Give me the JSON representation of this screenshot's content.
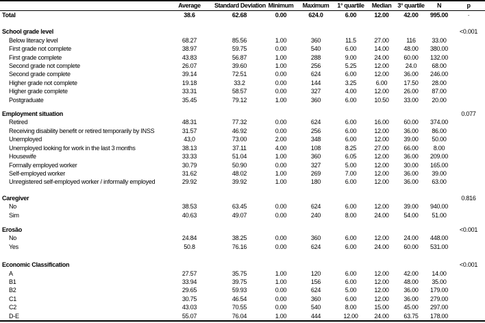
{
  "header": {
    "columns": [
      "",
      "Average",
      "Standard Deviation",
      "Minimum",
      "Maximum",
      "1° quartile",
      "Median",
      "3° quartile",
      "N",
      "p"
    ]
  },
  "rows": [
    {
      "type": "data",
      "label": "Total",
      "bold": true,
      "values": [
        "38.6",
        "62.68",
        "0.00",
        "624.0",
        "6.00",
        "12.00",
        "42.00",
        "995.00"
      ],
      "p": "-"
    },
    {
      "type": "spacer",
      "height": 12
    },
    {
      "type": "section",
      "label": "School grade level",
      "p": "<0.001"
    },
    {
      "type": "data",
      "indent": true,
      "label": "Below literacy level",
      "values": [
        "68.27",
        "85.56",
        "1.00",
        "360",
        "11.5",
        "27.00",
        "116",
        "33.00"
      ],
      "p": ""
    },
    {
      "type": "data",
      "indent": true,
      "label": "First grade not complete",
      "values": [
        "38.97",
        "59.75",
        "0.00",
        "540",
        "6.00",
        "14.00",
        "48.00",
        "380.00"
      ],
      "p": ""
    },
    {
      "type": "data",
      "indent": true,
      "label": "First grade complete",
      "values": [
        "43.83",
        "56.87",
        "1.00",
        "288",
        "9.00",
        "24.00",
        "60.00",
        "132.00"
      ],
      "p": ""
    },
    {
      "type": "data",
      "indent": true,
      "label": "Second grade not complete",
      "values": [
        "26.07",
        "39.60",
        "1.00",
        "256",
        "5.25",
        "12.00",
        "24.0",
        "68.00"
      ],
      "p": ""
    },
    {
      "type": "data",
      "indent": true,
      "label": "Second grade complete",
      "values": [
        "39.14",
        "72.51",
        "0.00",
        "624",
        "6.00",
        "12.00",
        "36.00",
        "246.00"
      ],
      "p": ""
    },
    {
      "type": "data",
      "indent": true,
      "label": "Higher grade not complete",
      "values": [
        "19.18",
        "33.2",
        "0.00",
        "144",
        "3.25",
        "6.00",
        "17.50",
        "28.00"
      ],
      "p": ""
    },
    {
      "type": "data",
      "indent": true,
      "label": "Higher grade complete",
      "values": [
        "33.31",
        "58.57",
        "0.00",
        "327",
        "4.00",
        "12.00",
        "26.00",
        "87.00"
      ],
      "p": ""
    },
    {
      "type": "data",
      "indent": true,
      "label": "Postgraduate",
      "values": [
        "35.45",
        "79.12",
        "1.00",
        "360",
        "6.00",
        "10.50",
        "33.00",
        "20.00"
      ],
      "p": ""
    },
    {
      "type": "spacer",
      "height": 8
    },
    {
      "type": "section",
      "label": "Employment situation",
      "p": "0.077"
    },
    {
      "type": "data",
      "indent": true,
      "label": "Retired",
      "values": [
        "48.31",
        "77.32",
        "0.00",
        "624",
        "6.00",
        "16.00",
        "60.00",
        "374.00"
      ],
      "p": ""
    },
    {
      "type": "data",
      "indent": true,
      "label": "Receiving disability benefit or retired temporarily by INSS",
      "values": [
        "31.57",
        "46.92",
        "0.00",
        "256",
        "6.00",
        "12.00",
        "36.00",
        "86.00"
      ],
      "p": ""
    },
    {
      "type": "data",
      "indent": true,
      "label": "Unemployed",
      "values": [
        "43,0",
        "73.00",
        "2.00",
        "348",
        "6.00",
        "12.00",
        "39.00",
        "50.00"
      ],
      "p": ""
    },
    {
      "type": "data",
      "indent": true,
      "label": "Unemployed looking for work in the last 3 months",
      "values": [
        "38.13",
        "37.11",
        "4.00",
        "108",
        "8.25",
        "27.00",
        "66.00",
        "8.00"
      ],
      "p": ""
    },
    {
      "type": "data",
      "indent": true,
      "label": "Housewife",
      "values": [
        "33.33",
        "51.04",
        "1.00",
        "360",
        "6.05",
        "12.00",
        "36.00",
        "209.00"
      ],
      "p": ""
    },
    {
      "type": "data",
      "indent": true,
      "label": "Formally employed worker",
      "values": [
        "30.79",
        "50.90",
        "0.00",
        "327",
        "5.00",
        "12.00",
        "30.00",
        "165.00"
      ],
      "p": ""
    },
    {
      "type": "data",
      "indent": true,
      "label": "Self-employed worker",
      "values": [
        "31.62",
        "48.02",
        "1.00",
        "269",
        "7.00",
        "12.00",
        "36.00",
        "39.00"
      ],
      "p": ""
    },
    {
      "type": "data",
      "indent": true,
      "label": "Unregistered self-employed worker / informally employed",
      "values": [
        "29.92",
        "39.92",
        "1.00",
        "180",
        "6.00",
        "12.00",
        "36.00",
        "63.00"
      ],
      "p": ""
    },
    {
      "type": "spacer",
      "height": 11
    },
    {
      "type": "section",
      "label": "Caregiver",
      "p": "0.816"
    },
    {
      "type": "data",
      "indent": true,
      "label": "No",
      "values": [
        "38.53",
        "63.45",
        "0.00",
        "624",
        "6.00",
        "12.00",
        "39.00",
        "940.00"
      ],
      "p": ""
    },
    {
      "type": "data",
      "indent": true,
      "label": "Sim",
      "values": [
        "40.63",
        "49.07",
        "0.00",
        "240",
        "8.00",
        "24.00",
        "54.00",
        "51.00"
      ],
      "p": ""
    },
    {
      "type": "spacer",
      "height": 9
    },
    {
      "type": "section",
      "label": "Erosão",
      "p": "<0.001"
    },
    {
      "type": "data",
      "indent": true,
      "label": "No",
      "values": [
        "24.84",
        "38.25",
        "0.00",
        "360",
        "6.00",
        "12.00",
        "24.00",
        "448.00"
      ],
      "p": ""
    },
    {
      "type": "data",
      "indent": true,
      "label": "Yes",
      "values": [
        "50.8",
        "76.16",
        "0.00",
        "624",
        "6.00",
        "24.00",
        "60.00",
        "531.00"
      ],
      "p": ""
    },
    {
      "type": "spacer",
      "height": 14
    },
    {
      "type": "section",
      "label": "Economic Classification",
      "p": "<0.001"
    },
    {
      "type": "data",
      "indent": true,
      "label": "A",
      "values": [
        "27.57",
        "35.75",
        "1.00",
        "120",
        "6.00",
        "12.00",
        "42.00",
        "14.00"
      ],
      "p": ""
    },
    {
      "type": "data",
      "indent": true,
      "label": "B1",
      "values": [
        "33.94",
        "39.75",
        "1.00",
        "156",
        "6.00",
        "12.00",
        "48.00",
        "35.00"
      ],
      "p": ""
    },
    {
      "type": "data",
      "indent": true,
      "label": "B2",
      "values": [
        "29.65",
        "59.93",
        "0.00",
        "624",
        "5.00",
        "12.00",
        "36.00",
        "179.00"
      ],
      "p": ""
    },
    {
      "type": "data",
      "indent": true,
      "label": "C1",
      "values": [
        "30.75",
        "46.54",
        "0.00",
        "360",
        "6.00",
        "12.00",
        "36.00",
        "279.00"
      ],
      "p": ""
    },
    {
      "type": "data",
      "indent": true,
      "label": "C2",
      "values": [
        "43.03",
        "70.55",
        "0.00",
        "540",
        "8.00",
        "15.00",
        "45.00",
        "297.00"
      ],
      "p": ""
    },
    {
      "type": "data",
      "indent": true,
      "label": "D-E",
      "values": [
        "55.07",
        "76.04",
        "1.00",
        "444",
        "12.00",
        "24.00",
        "63.75",
        "178.00"
      ],
      "p": ""
    }
  ]
}
